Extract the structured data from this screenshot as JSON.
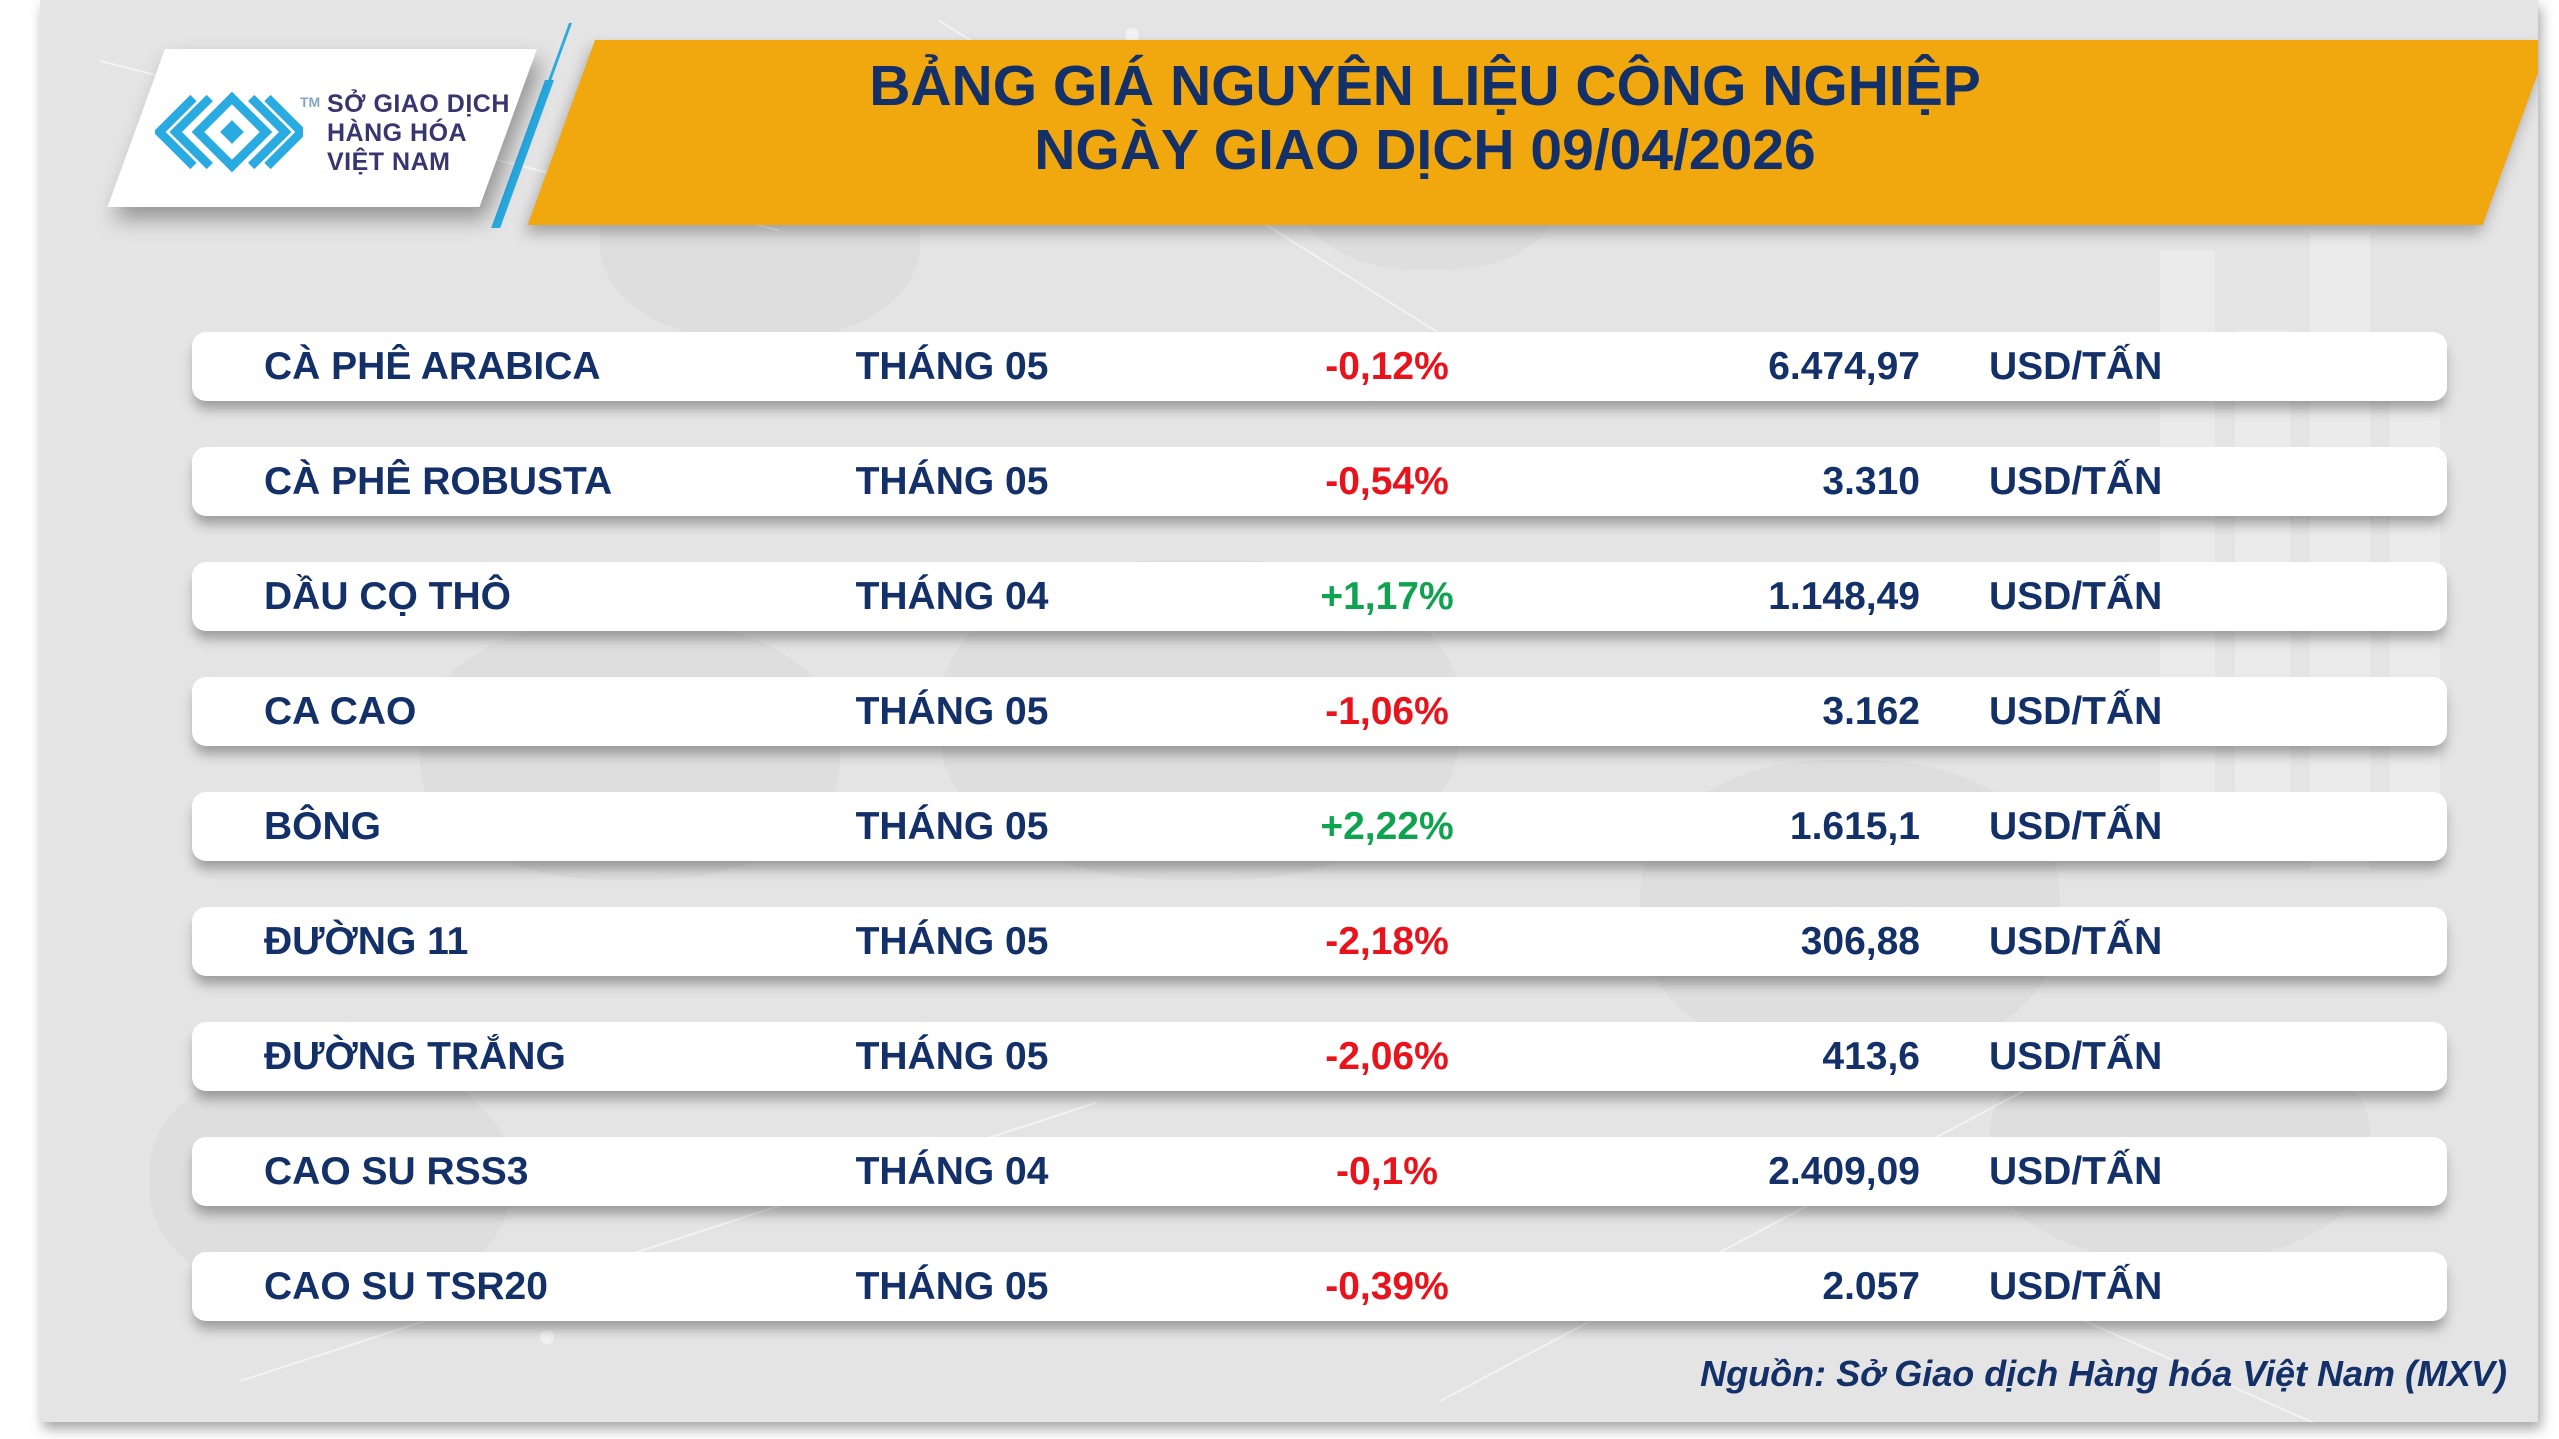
{
  "header": {
    "logo": {
      "line1": "SỞ GIAO DỊCH",
      "line2": "HÀNG HÓA",
      "line3": "VIỆT NAM",
      "tm": "TM"
    },
    "title_line1": "BẢNG GIÁ NGUYÊN LIỆU CÔNG NGHIỆP",
    "title_line2": "NGÀY GIAO DỊCH 09/04/2026"
  },
  "table": {
    "rows": [
      {
        "name": "CÀ PHÊ ARABICA",
        "month": "THÁNG 05",
        "change": "-0,12%",
        "direction": "down",
        "price": "6.474,97",
        "unit": "USD/TẤN"
      },
      {
        "name": "CÀ PHÊ ROBUSTA",
        "month": "THÁNG 05",
        "change": "-0,54%",
        "direction": "down",
        "price": "3.310",
        "unit": "USD/TẤN"
      },
      {
        "name": "DẦU CỌ THÔ",
        "month": "THÁNG 04",
        "change": "+1,17%",
        "direction": "up",
        "price": "1.148,49",
        "unit": "USD/TẤN"
      },
      {
        "name": "CA CAO",
        "month": "THÁNG 05",
        "change": "-1,06%",
        "direction": "down",
        "price": "3.162",
        "unit": "USD/TẤN"
      },
      {
        "name": "BÔNG",
        "month": "THÁNG 05",
        "change": "+2,22%",
        "direction": "up",
        "price": "1.615,1",
        "unit": "USD/TẤN"
      },
      {
        "name": "ĐƯỜNG 11",
        "month": "THÁNG 05",
        "change": "-2,18%",
        "direction": "down",
        "price": "306,88",
        "unit": "USD/TẤN"
      },
      {
        "name": "ĐƯỜNG TRẮNG",
        "month": "THÁNG 05",
        "change": "-2,06%",
        "direction": "down",
        "price": "413,6",
        "unit": "USD/TẤN"
      },
      {
        "name": "CAO SU RSS3",
        "month": "THÁNG 04",
        "change": "-0,1%",
        "direction": "down",
        "price": "2.409,09",
        "unit": "USD/TẤN"
      },
      {
        "name": "CAO SU TSR20",
        "month": "THÁNG 05",
        "change": "-0,39%",
        "direction": "down",
        "price": "2.057",
        "unit": "USD/TẤN"
      }
    ]
  },
  "footer": {
    "source": "Nguồn: Sở Giao dịch Hàng hóa Việt Nam (MXV)"
  },
  "colors": {
    "navy": "#143068",
    "up": "#0fa34f",
    "down": "#e8131b",
    "yellow": "#f1a70e",
    "cyan": "#29abe2",
    "logo_text": "#39366f"
  },
  "chart_data": {
    "type": "table",
    "title": "BẢNG GIÁ NGUYÊN LIỆU CÔNG NGHIỆP",
    "subtitle": "NGÀY GIAO DỊCH 09/04/2026",
    "rows": [
      [
        "CÀ PHÊ ARABICA",
        "THÁNG 05",
        "-0,12%",
        "6.474,97",
        "USD/TẤN"
      ],
      [
        "CÀ PHÊ ROBUSTA",
        "THÁNG 05",
        "-0,54%",
        "3.310",
        "USD/TẤN"
      ],
      [
        "DẦU CỌ THÔ",
        "THÁNG 04",
        "+1,17%",
        "1.148,49",
        "USD/TẤN"
      ],
      [
        "CA CAO",
        "THÁNG 05",
        "-1,06%",
        "3.162",
        "USD/TẤN"
      ],
      [
        "BÔNG",
        "THÁNG 05",
        "+2,22%",
        "1.615,1",
        "USD/TẤN"
      ],
      [
        "ĐƯỜNG 11",
        "THÁNG 05",
        "-2,18%",
        "306,88",
        "USD/TẤN"
      ],
      [
        "ĐƯỜNG TRẮNG",
        "THÁNG 05",
        "-2,06%",
        "413,6",
        "USD/TẤN"
      ],
      [
        "CAO SU RSS3",
        "THÁNG 04",
        "-0,1%",
        "2.409,09",
        "USD/TẤN"
      ],
      [
        "CAO SU TSR20",
        "THÁNG 05",
        "-0,39%",
        "2.057",
        "USD/TẤN"
      ]
    ],
    "source": "Nguồn: Sở Giao dịch Hàng hóa Việt Nam (MXV)"
  }
}
